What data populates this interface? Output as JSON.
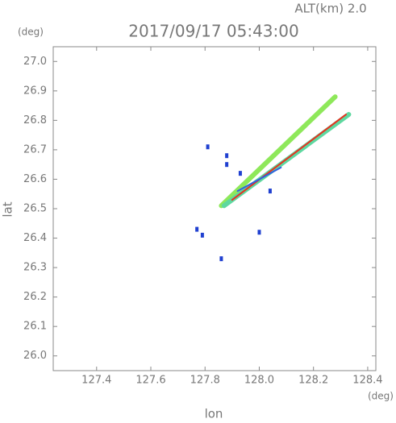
{
  "chart_data": {
    "type": "scatter",
    "title": "2017/09/17 05:43:00",
    "subtitle": "ALT(km)  2.0",
    "x_label": "lon",
    "y_label": "lat",
    "x_unit": "(deg)",
    "y_unit": "(deg)",
    "xlim": [
      127.24,
      128.43
    ],
    "ylim": [
      25.95,
      27.05
    ],
    "xticks": [
      127.4,
      127.6,
      127.8,
      {
        "value": 128.0,
        "label": "128.0"
      },
      128.2,
      128.4
    ],
    "yticks": [
      {
        "value": 26.0,
        "label": "26.0"
      },
      26.1,
      26.2,
      26.3,
      26.4,
      26.5,
      26.6,
      26.7,
      26.8,
      26.9,
      {
        "value": 27.0,
        "label": "27.0"
      }
    ],
    "series": [
      {
        "mode": "streak",
        "color": "#8ee85a",
        "x": [
          127.86,
          128.28
        ],
        "y": [
          26.51,
          26.88
        ]
      },
      {
        "mode": "streak",
        "color": "#5ed8a0",
        "x": [
          127.87,
          128.33
        ],
        "y": [
          26.51,
          26.82
        ]
      },
      {
        "mode": "core",
        "color": "#e83020",
        "x": [
          127.9,
          128.32
        ],
        "y": [
          26.53,
          26.82
        ]
      },
      {
        "mode": "core",
        "color": "#3060e0",
        "x": [
          127.92,
          128.08
        ],
        "y": [
          26.56,
          26.64
        ]
      },
      {
        "mode": "points",
        "color": "#2040d0",
        "x": [
          127.81,
          127.88,
          127.88,
          127.77,
          127.79,
          127.86,
          128.0,
          128.04,
          127.93
        ],
        "y": [
          26.71,
          26.68,
          26.65,
          26.43,
          26.41,
          26.33,
          26.42,
          26.56,
          26.62
        ]
      }
    ]
  }
}
